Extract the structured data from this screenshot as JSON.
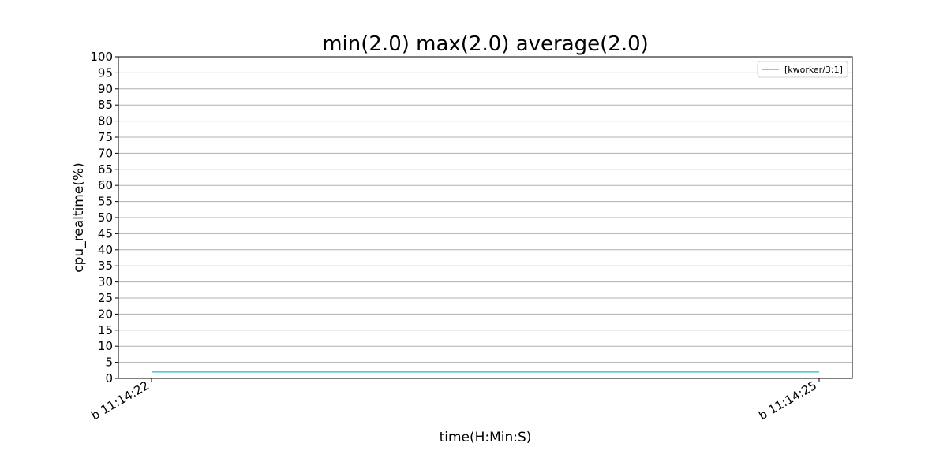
{
  "chart_data": {
    "type": "line",
    "title": "min(2.0) max(2.0) average(2.0)",
    "xlabel": "time(H:Min:S)",
    "ylabel": "cpu_realtime(%)",
    "ylim": [
      0,
      100
    ],
    "yticks": [
      0,
      5,
      10,
      15,
      20,
      25,
      30,
      35,
      40,
      45,
      50,
      55,
      60,
      65,
      70,
      75,
      80,
      85,
      90,
      95,
      100
    ],
    "x": [
      "b 11:14:22",
      "b 11:14:25"
    ],
    "xticks": [
      "b 11:14:22",
      "b 11:14:25"
    ],
    "series": [
      {
        "name": "[kworker/3:1]",
        "color": "#17becf",
        "values": [
          2.0,
          2.0
        ]
      }
    ],
    "grid": "horizontal",
    "legend_position": "top-right"
  }
}
